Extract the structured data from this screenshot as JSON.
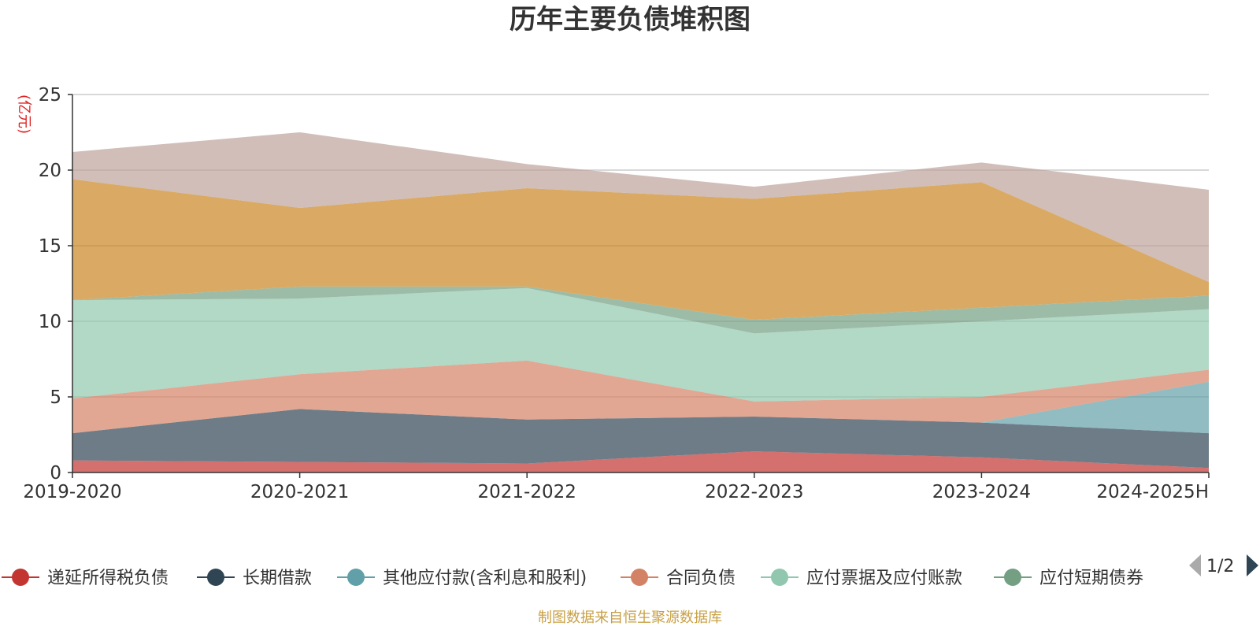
{
  "chart_data": {
    "type": "area",
    "stacked": true,
    "title": "历年主要负债堆积图",
    "unit_label": "(亿元)",
    "x": [
      "2019-2020",
      "2020-2021",
      "2021-2022",
      "2022-2023",
      "2023-2024",
      "2024-2025H"
    ],
    "ylim": [
      0,
      25
    ],
    "yticks": [
      0,
      5,
      10,
      15,
      20,
      25
    ],
    "grid": true,
    "series": [
      {
        "name": "递延所得税负债",
        "color": "#c23531",
        "values": [
          0.8,
          0.7,
          0.6,
          1.4,
          1.0,
          0.3
        ]
      },
      {
        "name": "长期借款",
        "color": "#2f4554",
        "values": [
          1.8,
          3.5,
          2.9,
          2.3,
          2.3,
          2.3
        ]
      },
      {
        "name": "其他应付款(含利息和股利)",
        "color": "#61a0a8",
        "values": [
          0.0,
          0.0,
          0.0,
          0.0,
          0.0,
          3.4
        ]
      },
      {
        "name": "合同负债",
        "color": "#d48265",
        "values": [
          2.3,
          2.3,
          3.9,
          1.0,
          1.7,
          0.8
        ]
      },
      {
        "name": "应付票据及应付账款",
        "color": "#91c7ae",
        "values": [
          6.5,
          5.0,
          4.8,
          4.5,
          5.0,
          4.0
        ]
      },
      {
        "name": "应付短期债券",
        "color": "#749f83",
        "values": [
          0.0,
          0.8,
          0.1,
          0.9,
          0.9,
          0.9
        ]
      },
      {
        "name": "",
        "color": "#ca8622",
        "values": [
          8.0,
          5.2,
          6.5,
          8.0,
          8.3,
          0.9
        ]
      },
      {
        "name": "",
        "color": "#bda29a",
        "values": [
          1.8,
          5.0,
          1.6,
          0.8,
          1.3,
          6.1
        ]
      }
    ],
    "legend": {
      "position": "bottom",
      "page": "1/2"
    },
    "source_note": "制图数据来自恒生聚源数据库"
  }
}
